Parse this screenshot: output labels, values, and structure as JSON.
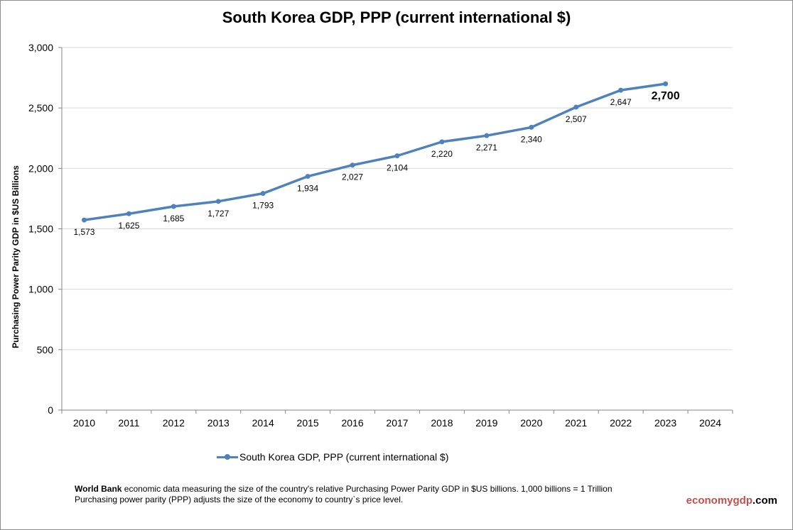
{
  "chart_data": {
    "type": "line",
    "title": "South Korea GDP, PPP (current international $)",
    "ylabel": "Purchasing Power Parity GDP in $US Billions",
    "xlabel": "",
    "categories": [
      "2010",
      "2011",
      "2012",
      "2013",
      "2014",
      "2015",
      "2016",
      "2017",
      "2018",
      "2019",
      "2020",
      "2021",
      "2022",
      "2023",
      "2024"
    ],
    "series": [
      {
        "name": "South Korea GDP, PPP (current international $)",
        "color": "#4f81bd",
        "values": [
          1573,
          1625,
          1685,
          1727,
          1793,
          1934,
          2027,
          2104,
          2220,
          2271,
          2340,
          2507,
          2647,
          2700,
          null
        ]
      }
    ],
    "data_labels": [
      "1,573",
      "1,625",
      "1,685",
      "1,727",
      "1,793",
      "1,934",
      "2,027",
      "2,104",
      "2,220",
      "2,271",
      "2,340",
      "2,507",
      "2,647",
      "2,700"
    ],
    "ylim": [
      0,
      3000
    ],
    "yticks": [
      0,
      500,
      1000,
      1500,
      2000,
      2500,
      3000
    ],
    "ytick_labels": [
      "0",
      "500",
      "1,000",
      "1,500",
      "2,000",
      "2,500",
      "3,000"
    ],
    "grid": true,
    "legend_position": "bottom"
  },
  "legend": {
    "label": "South Korea GDP, PPP (current international $)"
  },
  "footnote": {
    "source_bold": "World Bank",
    "line1_rest": " economic data  measuring the size of the country's relative  Purchasing Power Parity GDP in $US billions. 1,000 billions = 1 Trillion",
    "line2": "Purchasing power parity (PPP) adjusts the size of the economy to country`s price level."
  },
  "brand": {
    "part1": "economygdp",
    "part2": ".com"
  }
}
